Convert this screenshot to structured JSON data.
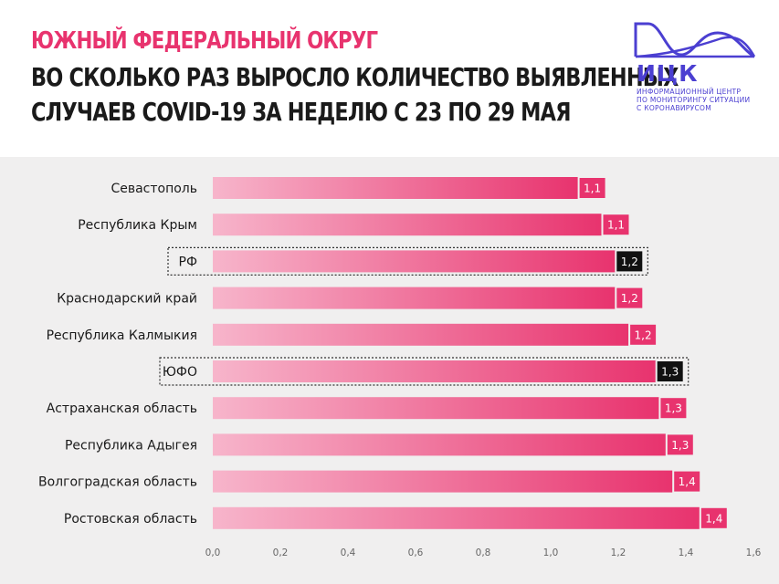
{
  "header": {
    "subtitle": "ЮЖНЫЙ ФЕДЕРАЛЬНЫЙ ОКРУГ",
    "title_line1": "ВО СКОЛЬКО РАЗ ВЫРОСЛО КОЛИЧЕСТВО ВЫЯВЛЕННЫХ",
    "title_line2": "СЛУЧАЕВ   COVID-19 ЗА НЕДЕЛЮ С 23 ПО 29 МАЯ"
  },
  "logo": {
    "name": "ИЦК",
    "caption": [
      "ИНФОРМАЦИОННЫЙ ЦЕНТР",
      "ПО МОНИТОРИНГУ СИТУАЦИИ",
      "С КОРОНАВИРУСОМ"
    ],
    "color": "#4b3fd1",
    "icon": "wave-arch-icon"
  },
  "colors": {
    "subtitle": "#e8336e",
    "bar_light": "#f7b5cb",
    "bar_dark": "#e8336e",
    "value_box": "#e8336e",
    "highlight_box": "#111111",
    "background": "#f0efef"
  },
  "chart_data": {
    "type": "bar",
    "orientation": "horizontal",
    "categories": [
      "Севастополь",
      "Республика Крым",
      "РФ",
      "Краснодарский край",
      "Республика Калмыкия",
      "ЮФО",
      "Астраханская область",
      "Республика Адыгея",
      "Волгоградская область",
      "Ростовская область"
    ],
    "values": [
      1.08,
      1.15,
      1.19,
      1.19,
      1.23,
      1.31,
      1.32,
      1.34,
      1.36,
      1.44
    ],
    "value_labels": [
      "1,1",
      "1,1",
      "1,2",
      "1,2",
      "1,2",
      "1,3",
      "1,3",
      "1,3",
      "1,4",
      "1,4"
    ],
    "highlighted": [
      "РФ",
      "ЮФО"
    ],
    "xlim": [
      0,
      1.6
    ],
    "xticks": [
      0,
      0.2,
      0.4,
      0.6,
      0.8,
      1.0,
      1.2,
      1.4,
      1.6
    ],
    "xtick_labels": [
      "0,0",
      "0,2",
      "0,4",
      "0,6",
      "0,8",
      "1,0",
      "1,2",
      "1,4",
      "1,6"
    ],
    "title": "",
    "xlabel": "",
    "ylabel": "",
    "grid": false,
    "legend": "none"
  }
}
